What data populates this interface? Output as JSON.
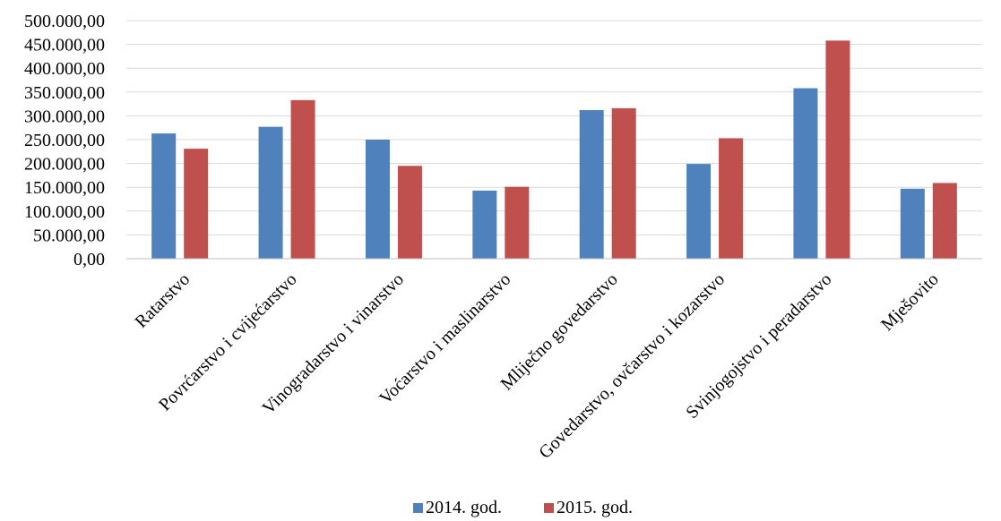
{
  "chart_data": {
    "type": "bar",
    "title": "",
    "xlabel": "",
    "ylabel": "",
    "ylim": [
      0,
      500000
    ],
    "grid": true,
    "legend_position": "bottom",
    "categories": [
      "Ratarstvo",
      "Povrćarstvo i cvijećarstvo",
      "Vinogradarstvo i vinarstvo",
      "Voćarstvo i maslinarstvo",
      "Mliječno govedarstvo",
      "Govedarstvo, ovčarstvo i kozarstvo",
      "Svinjogojstvo i peradarstvo",
      "Mješovito"
    ],
    "y_tick_labels": [
      "0,00",
      "50.000,00",
      "100.000,00",
      "150.000,00",
      "200.000,00",
      "250.000,00",
      "300.000,00",
      "350.000,00",
      "400.000,00",
      "450.000,00",
      "500.000,00"
    ],
    "y_tick_values": [
      0,
      50000,
      100000,
      150000,
      200000,
      250000,
      300000,
      350000,
      400000,
      450000,
      500000
    ],
    "series": [
      {
        "name": "2014. god.",
        "color": "#4f81bd",
        "values": [
          263000,
          277000,
          250000,
          143000,
          312000,
          199000,
          358000,
          147000
        ]
      },
      {
        "name": "2015. god.",
        "color": "#c0504d",
        "values": [
          231000,
          333000,
          195000,
          151000,
          316000,
          253000,
          458000,
          159000
        ]
      }
    ]
  }
}
